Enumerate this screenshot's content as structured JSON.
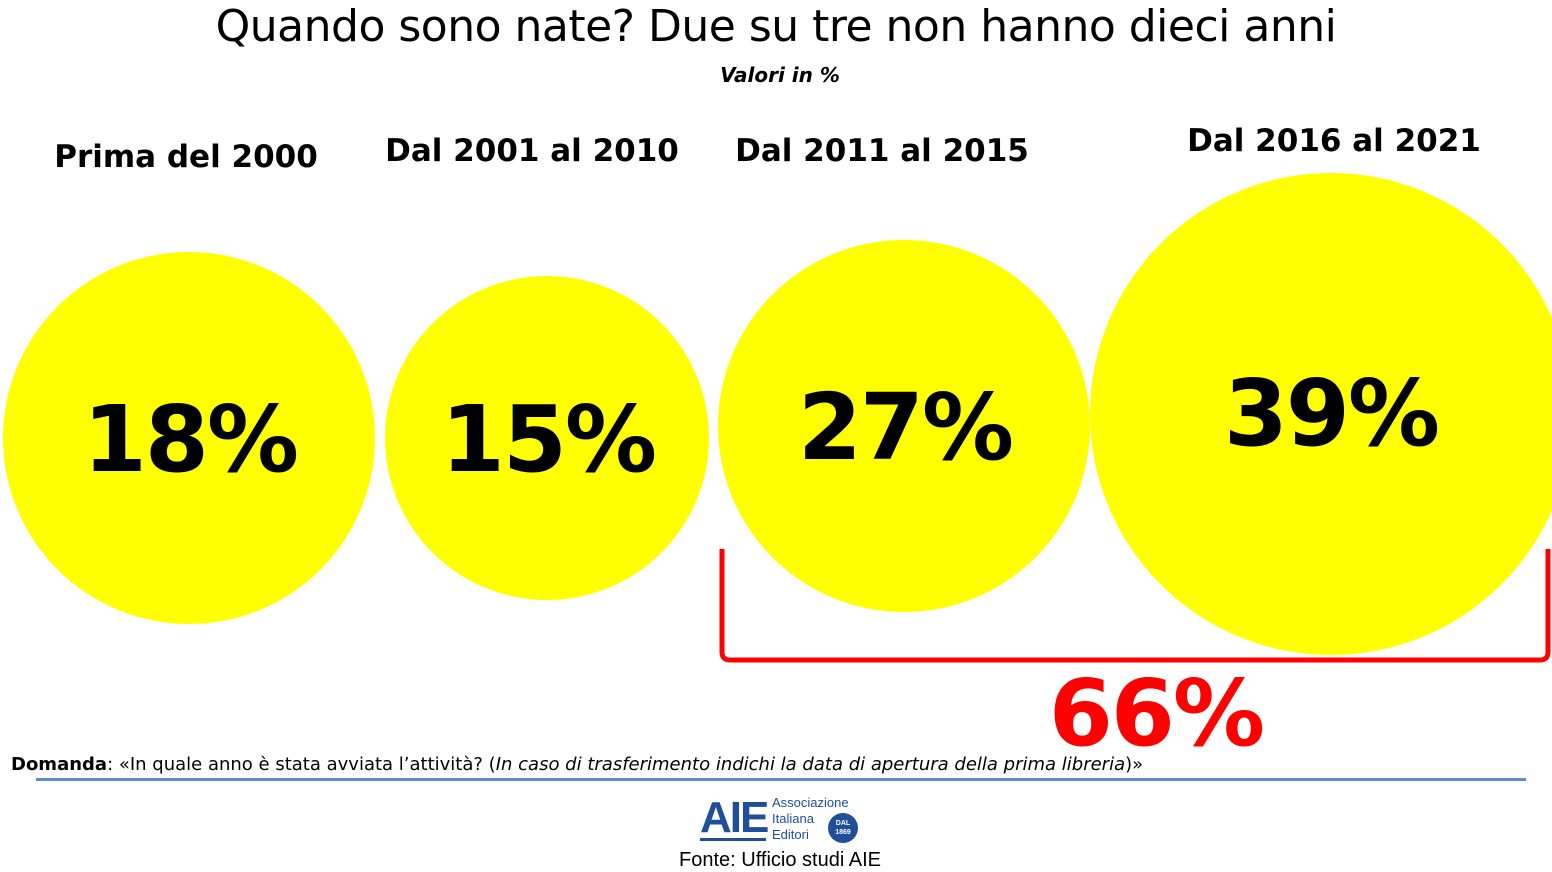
{
  "header": {
    "title": "Quando sono nate? Due su tre non hanno dieci anni",
    "subtitle": "Valori in %"
  },
  "chart_data": {
    "type": "bubble",
    "unit": "%",
    "categories": [
      "Prima del 2000",
      "Dal 2001 al 2010",
      "Dal 2011 al 2015",
      "Dal 2016 al 2021"
    ],
    "values": [
      18,
      15,
      27,
      39
    ],
    "value_labels": [
      "18%",
      "15%",
      "27%",
      "39%"
    ],
    "bubble_color": "#ffff00",
    "group_total": {
      "categories": [
        "Dal 2011 al 2015",
        "Dal 2016 al 2021"
      ],
      "value": 66,
      "label": "66%",
      "color": "#ff0000"
    }
  },
  "footer": {
    "question_label": "Domanda",
    "question_text": ": «In quale anno è stata avviata l’attività? (",
    "question_italic": "In caso di trasferimento indichi la data di apertura della prima libreria",
    "question_end": ")»",
    "logo": {
      "mark": "AIE",
      "name_lines": [
        "Associazione",
        "Italiana",
        "Editori"
      ],
      "seal_line1": "DAL",
      "seal_line2": "1869"
    },
    "source": "Fonte: Ufficio studi AIE"
  }
}
